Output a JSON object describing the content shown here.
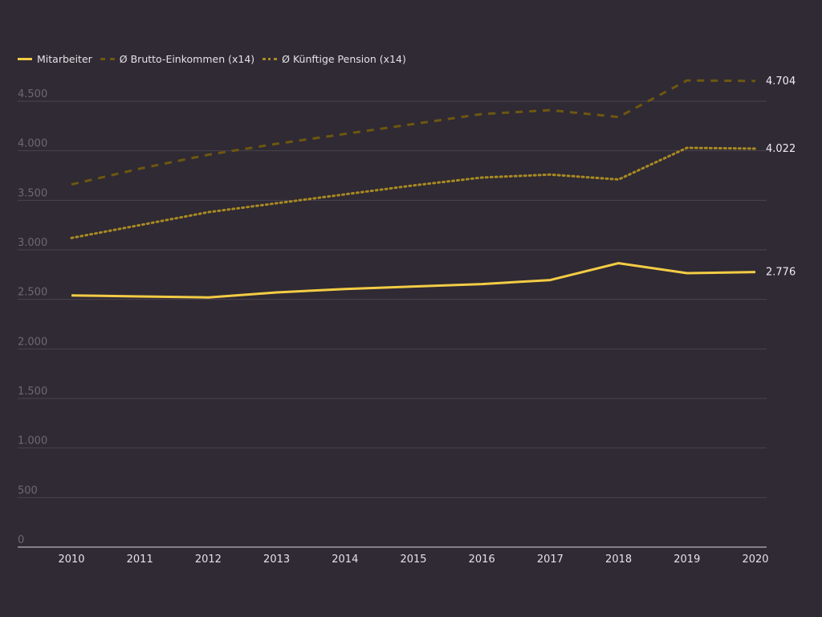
{
  "chart_data": {
    "type": "line",
    "x": [
      "2010",
      "2011",
      "2012",
      "2013",
      "2014",
      "2015",
      "2016",
      "2017",
      "2018",
      "2019",
      "2020"
    ],
    "ylim": [
      0,
      4700
    ],
    "y_ticks": [
      0,
      500,
      1000,
      1500,
      2000,
      2500,
      3000,
      3500,
      4000,
      4500
    ],
    "y_tick_labels": [
      "0",
      "500",
      "1.000",
      "1.500",
      "2.000",
      "2.500",
      "3.000",
      "3.500",
      "4.000",
      "4.500"
    ],
    "grid": true,
    "legend_position": "top-left",
    "series": [
      {
        "name": "Mitarbeiter",
        "style": "solid",
        "color": "#f4cc45",
        "values": [
          2540,
          2530,
          2520,
          2570,
          2605,
          2630,
          2655,
          2695,
          2865,
          2765,
          2776
        ],
        "end_label": "2.776"
      },
      {
        "name": "Ø Brutto-Einkommen (x14)",
        "style": "dashed",
        "color": "#6e5710",
        "values": [
          3660,
          3820,
          3960,
          4070,
          4170,
          4270,
          4370,
          4410,
          4340,
          4710,
          4704
        ],
        "end_label": "4.704"
      },
      {
        "name": "Ø Künftige Pension (x14)",
        "style": "dotted",
        "color": "#a88a22",
        "values": [
          3120,
          3250,
          3380,
          3470,
          3560,
          3650,
          3730,
          3760,
          3710,
          4030,
          4022
        ],
        "end_label": "4.022"
      }
    ]
  }
}
